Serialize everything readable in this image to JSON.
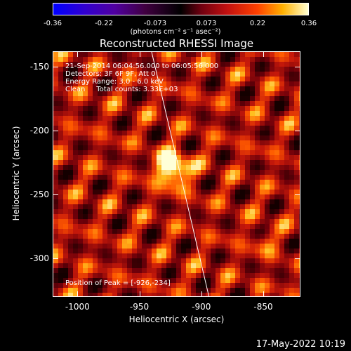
{
  "colorbar": {
    "ticks": [
      "-0.36",
      "-0.22",
      "-0.073",
      "0.073",
      "0.22",
      "0.36"
    ],
    "units": "(photons cm⁻² s⁻¹ asec⁻²)",
    "range": [
      -0.36,
      0.36
    ]
  },
  "title": "Reconstructed RHESSI Image",
  "info": {
    "time": "21-Sep-2014 06:04:56.000 to 06:05:56.000",
    "detectors": "Detectors: 3F 6F 9F, Att 0",
    "energy": "Energy Range: 3.0 - 6.0 keV",
    "clean": "Clean     Total counts: 3.33E+03",
    "peak": "Position of Peak = [-926,-234]"
  },
  "axes": {
    "xlabel": "Heliocentric X (arcsec)",
    "ylabel": "Heliocentric Y (arcsec)",
    "xticks": [
      "-1000",
      "-950",
      "-900",
      "-850"
    ],
    "yticks": [
      "-150",
      "-200",
      "-250",
      "-300"
    ],
    "xlim": [
      -1020,
      -820
    ],
    "ylim": [
      -330,
      -138
    ]
  },
  "timestamp": "17-May-2022 10:19"
}
